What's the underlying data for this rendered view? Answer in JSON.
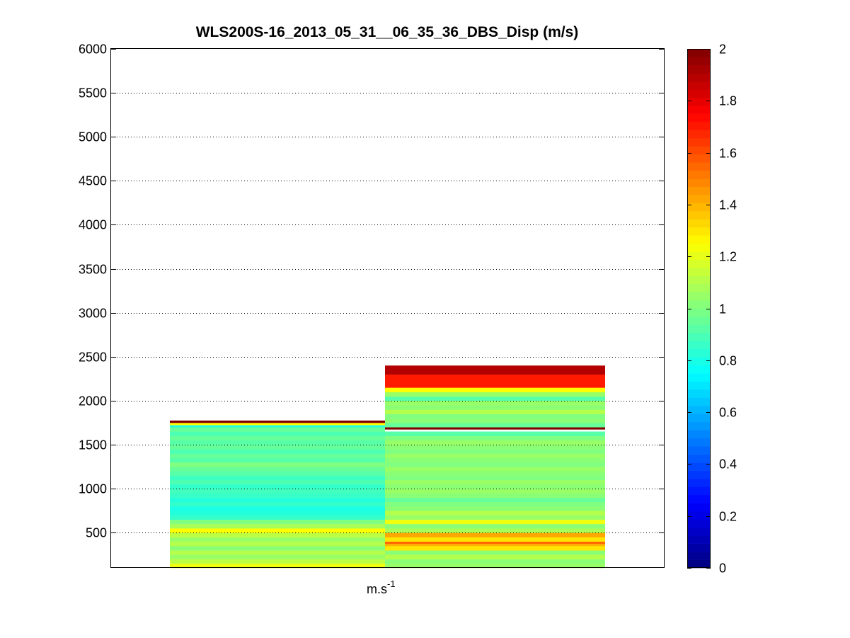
{
  "chart_data": {
    "type": "heatmap",
    "title": "WLS200S-16_2013_05_31__06_35_36_DBS_Disp (m/s)",
    "xlabel": "m.s",
    "xlabel_superscript": "-1",
    "ylabel": "",
    "ylim": [
      100,
      6000
    ],
    "y_ticks": [
      500,
      1000,
      1500,
      2000,
      2500,
      3000,
      3500,
      4000,
      4500,
      5000,
      5500,
      6000
    ],
    "grid": true,
    "colormap": "jet",
    "colorbar": {
      "range": [
        0,
        2
      ],
      "ticks": [
        0,
        0.2,
        0.4,
        0.6,
        0.8,
        1,
        1.2,
        1.4,
        1.6,
        1.8,
        2
      ],
      "tick_labels": [
        "0",
        "0.2",
        "0.4",
        "0.6",
        "0.8",
        "1",
        "1.2",
        "1.4",
        "1.6",
        "1.8",
        "2"
      ]
    },
    "columns": [
      {
        "cells": [
          {
            "y0": 100,
            "y1": 150,
            "v": 1.22
          },
          {
            "y0": 150,
            "y1": 200,
            "v": 1.12
          },
          {
            "y0": 200,
            "y1": 250,
            "v": 1.05
          },
          {
            "y0": 250,
            "y1": 300,
            "v": 1.1
          },
          {
            "y0": 300,
            "y1": 350,
            "v": 1.02
          },
          {
            "y0": 350,
            "y1": 400,
            "v": 1.1
          },
          {
            "y0": 400,
            "y1": 450,
            "v": 1.05
          },
          {
            "y0": 450,
            "y1": 500,
            "v": 1.12
          },
          {
            "y0": 500,
            "y1": 550,
            "v": 1.25
          },
          {
            "y0": 550,
            "y1": 600,
            "v": 1.08
          },
          {
            "y0": 600,
            "y1": 650,
            "v": 1.0
          },
          {
            "y0": 650,
            "y1": 700,
            "v": 0.85
          },
          {
            "y0": 700,
            "y1": 750,
            "v": 0.82
          },
          {
            "y0": 750,
            "y1": 800,
            "v": 0.8
          },
          {
            "y0": 800,
            "y1": 850,
            "v": 0.85
          },
          {
            "y0": 850,
            "y1": 900,
            "v": 0.82
          },
          {
            "y0": 900,
            "y1": 950,
            "v": 0.86
          },
          {
            "y0": 950,
            "y1": 1000,
            "v": 0.88
          },
          {
            "y0": 1000,
            "y1": 1050,
            "v": 0.85
          },
          {
            "y0": 1050,
            "y1": 1100,
            "v": 0.9
          },
          {
            "y0": 1100,
            "y1": 1150,
            "v": 0.87
          },
          {
            "y0": 1150,
            "y1": 1200,
            "v": 0.92
          },
          {
            "y0": 1200,
            "y1": 1250,
            "v": 0.95
          },
          {
            "y0": 1250,
            "y1": 1300,
            "v": 1.0
          },
          {
            "y0": 1300,
            "y1": 1350,
            "v": 0.92
          },
          {
            "y0": 1350,
            "y1": 1400,
            "v": 0.95
          },
          {
            "y0": 1400,
            "y1": 1450,
            "v": 0.9
          },
          {
            "y0": 1450,
            "y1": 1500,
            "v": 0.95
          },
          {
            "y0": 1500,
            "y1": 1550,
            "v": 0.92
          },
          {
            "y0": 1550,
            "y1": 1600,
            "v": 0.95
          },
          {
            "y0": 1600,
            "y1": 1650,
            "v": 0.9
          },
          {
            "y0": 1650,
            "y1": 1700,
            "v": 0.95
          },
          {
            "y0": 1700,
            "y1": 1725,
            "v": 0.82
          },
          {
            "y0": 1725,
            "y1": 1750,
            "v": 1.25
          },
          {
            "y0": 1750,
            "y1": 1775,
            "v": 2.0
          }
        ]
      },
      {
        "cells": [
          {
            "y0": 100,
            "y1": 150,
            "v": 1.05
          },
          {
            "y0": 150,
            "y1": 200,
            "v": 1.02
          },
          {
            "y0": 200,
            "y1": 250,
            "v": 1.1
          },
          {
            "y0": 250,
            "y1": 300,
            "v": 1.02
          },
          {
            "y0": 300,
            "y1": 350,
            "v": 1.3
          },
          {
            "y0": 350,
            "y1": 375,
            "v": 1.4
          },
          {
            "y0": 375,
            "y1": 400,
            "v": 1.55
          },
          {
            "y0": 400,
            "y1": 450,
            "v": 1.3
          },
          {
            "y0": 450,
            "y1": 500,
            "v": 1.42
          },
          {
            "y0": 500,
            "y1": 550,
            "v": 1.08
          },
          {
            "y0": 550,
            "y1": 600,
            "v": 1.02
          },
          {
            "y0": 600,
            "y1": 650,
            "v": 1.22
          },
          {
            "y0": 650,
            "y1": 700,
            "v": 1.05
          },
          {
            "y0": 700,
            "y1": 750,
            "v": 1.1
          },
          {
            "y0": 750,
            "y1": 800,
            "v": 1.02
          },
          {
            "y0": 800,
            "y1": 850,
            "v": 1.0
          },
          {
            "y0": 850,
            "y1": 900,
            "v": 0.95
          },
          {
            "y0": 900,
            "y1": 950,
            "v": 1.02
          },
          {
            "y0": 950,
            "y1": 1000,
            "v": 1.05
          },
          {
            "y0": 1000,
            "y1": 1050,
            "v": 1.02
          },
          {
            "y0": 1050,
            "y1": 1100,
            "v": 1.05
          },
          {
            "y0": 1100,
            "y1": 1150,
            "v": 1.0
          },
          {
            "y0": 1150,
            "y1": 1200,
            "v": 1.02
          },
          {
            "y0": 1200,
            "y1": 1250,
            "v": 1.05
          },
          {
            "y0": 1250,
            "y1": 1300,
            "v": 1.0
          },
          {
            "y0": 1300,
            "y1": 1350,
            "v": 1.02
          },
          {
            "y0": 1350,
            "y1": 1400,
            "v": 1.05
          },
          {
            "y0": 1400,
            "y1": 1450,
            "v": 1.0
          },
          {
            "y0": 1450,
            "y1": 1500,
            "v": 1.02
          },
          {
            "y0": 1500,
            "y1": 1550,
            "v": 1.05
          },
          {
            "y0": 1550,
            "y1": 1600,
            "v": 1.0
          },
          {
            "y0": 1600,
            "y1": 1650,
            "v": 0.92
          },
          {
            "y0": 1675,
            "y1": 1700,
            "v": 2.0
          },
          {
            "y0": 1700,
            "y1": 1750,
            "v": 0.95
          },
          {
            "y0": 1750,
            "y1": 1800,
            "v": 1.02
          },
          {
            "y0": 1800,
            "y1": 1850,
            "v": 1.0
          },
          {
            "y0": 1850,
            "y1": 1900,
            "v": 1.1
          },
          {
            "y0": 1900,
            "y1": 1950,
            "v": 1.02
          },
          {
            "y0": 1950,
            "y1": 2000,
            "v": 1.05
          },
          {
            "y0": 2000,
            "y1": 2050,
            "v": 0.92
          },
          {
            "y0": 2050,
            "y1": 2100,
            "v": 1.05
          },
          {
            "y0": 2100,
            "y1": 2150,
            "v": 1.25
          },
          {
            "y0": 2150,
            "y1": 2300,
            "v": 1.7
          },
          {
            "y0": 2300,
            "y1": 2400,
            "v": 1.9
          }
        ]
      }
    ]
  }
}
